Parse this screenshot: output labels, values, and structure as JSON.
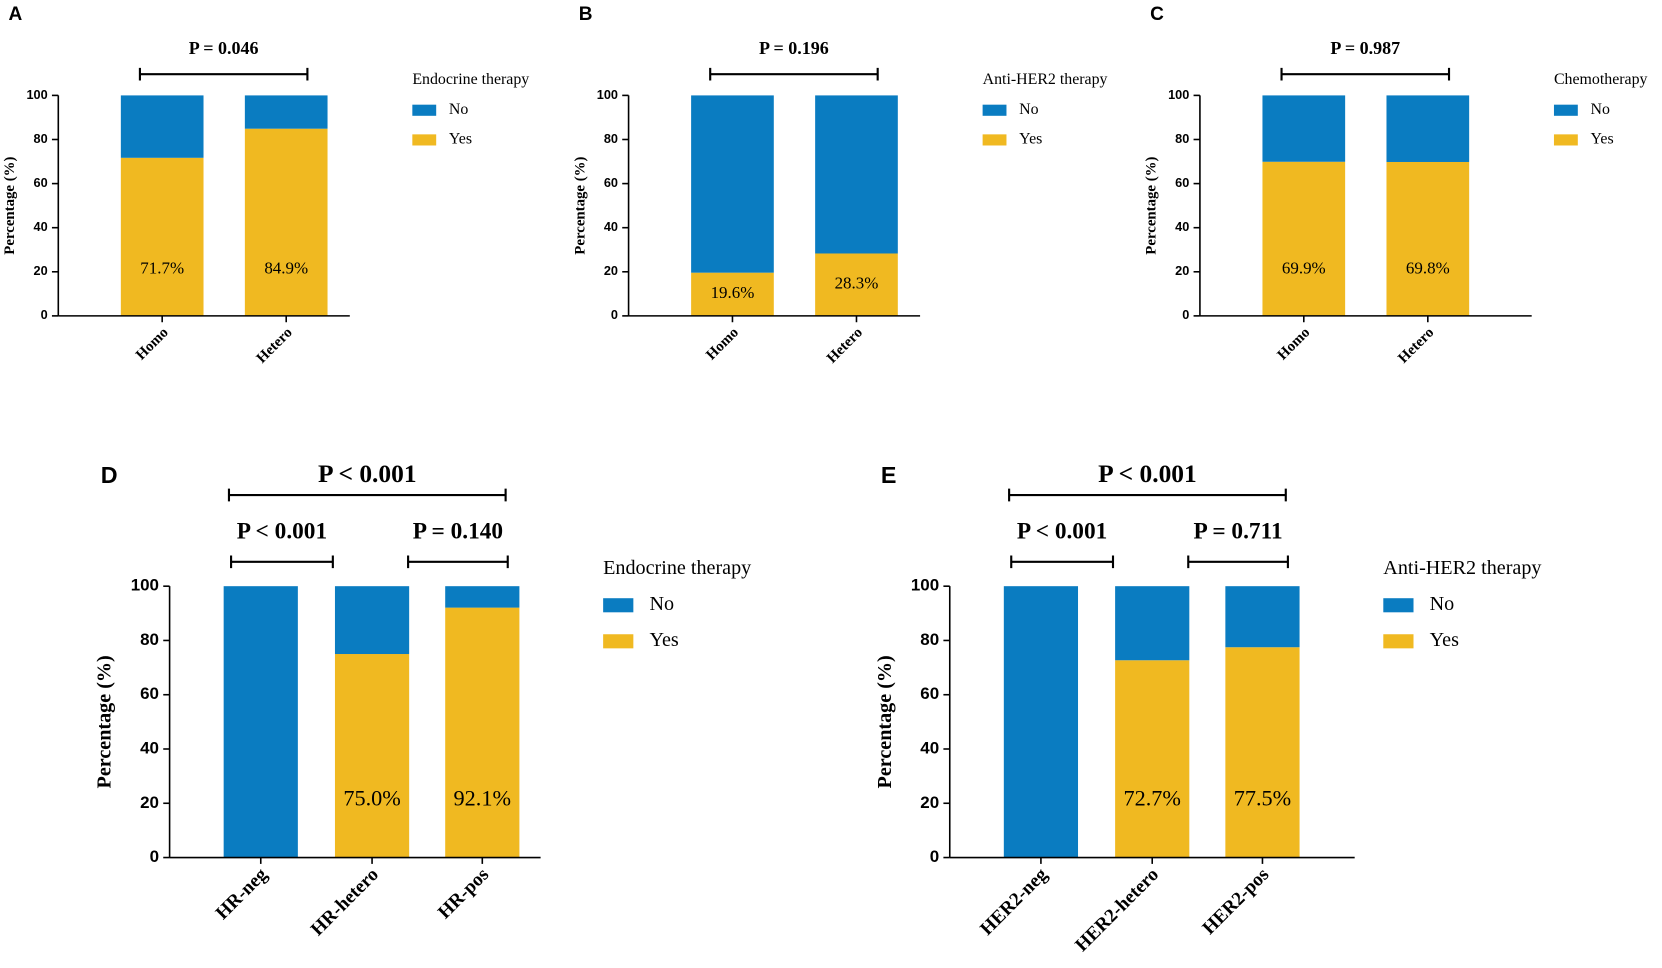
{
  "chart_data": [
    {
      "type": "bar",
      "stacked": true,
      "panel_label": "A",
      "ylabel": "Percentage (%)",
      "categories": [
        "Homo",
        "Hetero"
      ],
      "series": [
        {
          "name": "No",
          "color": "#0a7cc1",
          "values": [
            28.3,
            15.1
          ]
        },
        {
          "name": "Yes",
          "color": "#f0b921",
          "values": [
            71.7,
            84.9
          ],
          "value_labels": [
            "71.7%",
            "84.9%"
          ]
        }
      ],
      "ylim": [
        0,
        100
      ],
      "yticks": [
        0,
        20,
        40,
        60,
        80,
        100
      ],
      "legend_title": "Endocrine therapy",
      "annotations": [
        "P = 0.046"
      ]
    },
    {
      "type": "bar",
      "stacked": true,
      "panel_label": "B",
      "ylabel": "Percentage (%)",
      "categories": [
        "Homo",
        "Hetero"
      ],
      "series": [
        {
          "name": "No",
          "color": "#0a7cc1",
          "values": [
            80.4,
            71.7
          ]
        },
        {
          "name": "Yes",
          "color": "#f0b921",
          "values": [
            19.6,
            28.3
          ],
          "value_labels": [
            "19.6%",
            "28.3%"
          ]
        }
      ],
      "ylim": [
        0,
        100
      ],
      "yticks": [
        0,
        20,
        40,
        60,
        80,
        100
      ],
      "legend_title": "Anti-HER2 therapy",
      "annotations": [
        "P = 0.196"
      ]
    },
    {
      "type": "bar",
      "stacked": true,
      "panel_label": "C",
      "ylabel": "Percentage (%)",
      "categories": [
        "Homo",
        "Hetero"
      ],
      "series": [
        {
          "name": "No",
          "color": "#0a7cc1",
          "values": [
            30.1,
            30.2
          ]
        },
        {
          "name": "Yes",
          "color": "#f0b921",
          "values": [
            69.9,
            69.8
          ],
          "value_labels": [
            "69.9%",
            "69.8%"
          ]
        }
      ],
      "ylim": [
        0,
        100
      ],
      "yticks": [
        0,
        20,
        40,
        60,
        80,
        100
      ],
      "legend_title": "Chemotherapy",
      "annotations": [
        "P = 0.987"
      ]
    },
    {
      "type": "bar",
      "stacked": true,
      "panel_label": "D",
      "ylabel": "Percentage (%)",
      "categories": [
        "HR-neg",
        "HR-hetero",
        "HR-pos"
      ],
      "series": [
        {
          "name": "No",
          "color": "#0a7cc1",
          "values": [
            100,
            25.0,
            7.9
          ]
        },
        {
          "name": "Yes",
          "color": "#f0b921",
          "values": [
            0,
            75.0,
            92.1
          ],
          "value_labels": [
            null,
            "75.0%",
            "92.1%"
          ]
        }
      ],
      "ylim": [
        0,
        100
      ],
      "yticks": [
        0,
        20,
        40,
        60,
        80,
        100
      ],
      "legend_title": "Endocrine therapy",
      "annotations": [
        "P < 0.001",
        "P < 0.001",
        "P = 0.140"
      ]
    },
    {
      "type": "bar",
      "stacked": true,
      "panel_label": "E",
      "ylabel": "Percentage (%)",
      "categories": [
        "HER2-neg",
        "HER2-hetero",
        "HER2-pos"
      ],
      "series": [
        {
          "name": "No",
          "color": "#0a7cc1",
          "values": [
            100,
            27.3,
            22.5
          ]
        },
        {
          "name": "Yes",
          "color": "#f0b921",
          "values": [
            0,
            72.7,
            77.5
          ],
          "value_labels": [
            null,
            "72.7%",
            "77.5%"
          ]
        }
      ],
      "ylim": [
        0,
        100
      ],
      "yticks": [
        0,
        20,
        40,
        60,
        80,
        100
      ],
      "legend_title": "Anti-HER2 therapy",
      "annotations": [
        "P < 0.001",
        "P < 0.001",
        "P = 0.711"
      ]
    }
  ]
}
